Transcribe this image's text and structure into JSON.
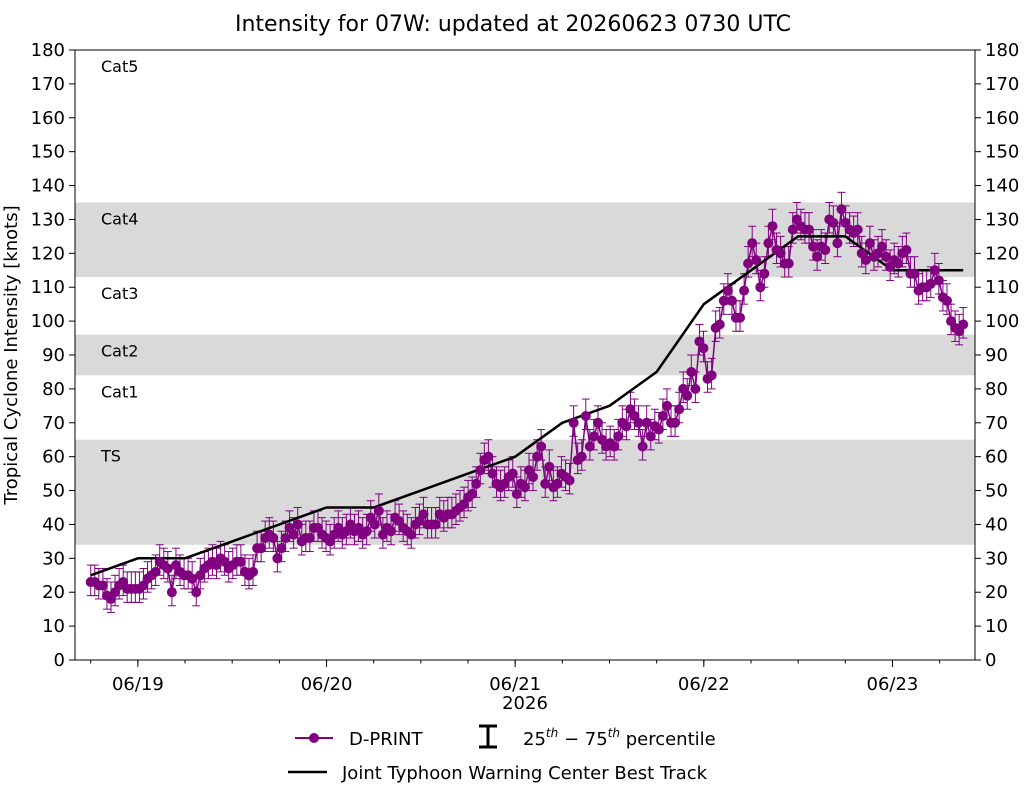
{
  "chart_data": {
    "type": "scatter",
    "title": "Intensity for 07W: updated at 20260623 0730 UTC",
    "ylabel": "Tropical Cyclone Intensity [knots]",
    "xlabel": "2026",
    "ylim": [
      0,
      180
    ],
    "yticks": [
      0,
      10,
      20,
      30,
      40,
      50,
      60,
      70,
      80,
      90,
      100,
      110,
      120,
      130,
      140,
      150,
      160,
      170,
      180
    ],
    "xlim": [
      "2026-06-18T16:00",
      "2026-06-23T10:30"
    ],
    "xticks": [
      {
        "date": "2026-06-19T00:00",
        "label": "06/19"
      },
      {
        "date": "2026-06-20T00:00",
        "label": "06/20"
      },
      {
        "date": "2026-06-21T00:00",
        "label": "06/21"
      },
      {
        "date": "2026-06-22T00:00",
        "label": "06/22"
      },
      {
        "date": "2026-06-23T00:00",
        "label": "06/23"
      }
    ],
    "grid": false,
    "category_bands": [
      {
        "label": "TS",
        "min": 34,
        "max": 65,
        "shaded": true
      },
      {
        "label": "Cat1",
        "min": 65,
        "max": 84,
        "shaded": false
      },
      {
        "label": "Cat2",
        "min": 84,
        "max": 96,
        "shaded": true
      },
      {
        "label": "Cat3",
        "min": 96,
        "max": 113,
        "shaded": false
      },
      {
        "label": "Cat4",
        "min": 113,
        "max": 135,
        "shaded": true
      },
      {
        "label": "Cat5",
        "min": 135,
        "max": 180,
        "shaded": false
      }
    ],
    "legend": {
      "placement": "bottom",
      "dprint": "D-PRINT",
      "percentile_base": "25",
      "percentile_sup1": "th",
      "percentile_mid": " − 75",
      "percentile_sup2": "th",
      "percentile_tail": " percentile",
      "best_track": "Joint Typhoon Warning Center Best Track"
    },
    "colors": {
      "dprint": "#800080",
      "best_track": "#000000",
      "band": "#d9d9d9"
    },
    "series": [
      {
        "name": "Joint Typhoon Warning Center Best Track",
        "type": "line",
        "x": [
          "2026-06-18T18:00",
          "2026-06-19T00:00",
          "2026-06-19T06:00",
          "2026-06-19T12:00",
          "2026-06-19T18:00",
          "2026-06-20T00:00",
          "2026-06-20T06:00",
          "2026-06-20T12:00",
          "2026-06-20T18:00",
          "2026-06-21T00:00",
          "2026-06-21T06:00",
          "2026-06-21T12:00",
          "2026-06-21T18:00",
          "2026-06-22T00:00",
          "2026-06-22T06:00",
          "2026-06-22T12:00",
          "2026-06-22T18:00",
          "2026-06-23T00:00",
          "2026-06-23T06:00",
          "2026-06-23T09:00"
        ],
        "y": [
          25,
          30,
          30,
          35,
          40,
          45,
          45,
          50,
          55,
          60,
          70,
          75,
          85,
          105,
          115,
          125,
          125,
          115,
          115,
          115
        ]
      },
      {
        "name": "D-PRINT",
        "type": "scatter_errorbar",
        "x_start": "2026-06-18T18:00",
        "x_end": "2026-06-23T09:00",
        "y": [
          23,
          23,
          22,
          22,
          19,
          18,
          20,
          22,
          23,
          21,
          21,
          21,
          21,
          22,
          24,
          25,
          26,
          29,
          28,
          27,
          20,
          28,
          26,
          25,
          25,
          24,
          20,
          25,
          27,
          28,
          29,
          28,
          30,
          29,
          27,
          28,
          29,
          29,
          26,
          25,
          26,
          33,
          33,
          36,
          37,
          36,
          30,
          33,
          36,
          39,
          37,
          40,
          35,
          36,
          36,
          39,
          39,
          37,
          36,
          35,
          37,
          39,
          37,
          38,
          40,
          38,
          39,
          37,
          38,
          42,
          40,
          44,
          37,
          39,
          38,
          42,
          41,
          39,
          38,
          37,
          40,
          41,
          43,
          40,
          40,
          40,
          43,
          42,
          43,
          43,
          44,
          45,
          46,
          48,
          49,
          52,
          56,
          59,
          60,
          55,
          52,
          51,
          52,
          54,
          55,
          49,
          52,
          51,
          56,
          54,
          60,
          63,
          52,
          57,
          51,
          52,
          55,
          54,
          53,
          70,
          59,
          60,
          72,
          63,
          66,
          70,
          65,
          63,
          64,
          63,
          66,
          70,
          69,
          74,
          72,
          70,
          63,
          70,
          66,
          69,
          68,
          72,
          75,
          70,
          70,
          74,
          80,
          78,
          85,
          80,
          94,
          92,
          83,
          84,
          98,
          99,
          106,
          109,
          106,
          101,
          101,
          109,
          117,
          123,
          118,
          110,
          114,
          123,
          128,
          121,
          120,
          117,
          117,
          127,
          130,
          128,
          127,
          127,
          122,
          119,
          122,
          121,
          130,
          129,
          123,
          133,
          129,
          127,
          126,
          127,
          120,
          118,
          123,
          119,
          120,
          122,
          119,
          116,
          118,
          117,
          120,
          121,
          114,
          114,
          109,
          110,
          110,
          111,
          115,
          112,
          107,
          106,
          100,
          98,
          97,
          99
        ],
        "err_low": 4,
        "err_high": 5
      }
    ]
  }
}
